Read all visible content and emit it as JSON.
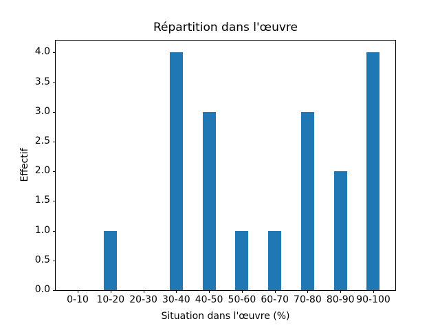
{
  "figure": {
    "background": "#ffffff"
  },
  "chart_data": {
    "type": "bar",
    "title": "Répartition dans l'œuvre",
    "xlabel": "Situation dans l'œuvre (%)",
    "ylabel": "Effectif",
    "categories": [
      "0-10",
      "10-20",
      "20-30",
      "30-40",
      "40-50",
      "50-60",
      "60-70",
      "70-80",
      "80-90",
      "90-100"
    ],
    "values": [
      0,
      1,
      0,
      4,
      3,
      1,
      1,
      3,
      2,
      4
    ],
    "ylim": [
      0,
      4.2
    ],
    "yticks": [
      0.0,
      0.5,
      1.0,
      1.5,
      2.0,
      2.5,
      3.0,
      3.5,
      4.0
    ],
    "ytick_labels": [
      "0.0",
      "0.5",
      "1.0",
      "1.5",
      "2.0",
      "2.5",
      "3.0",
      "3.5",
      "4.0"
    ],
    "xlim": [
      -0.67,
      9.67
    ],
    "bar_width": 0.4,
    "bar_color": "#1f77b4",
    "grid": false,
    "legend": "none"
  }
}
